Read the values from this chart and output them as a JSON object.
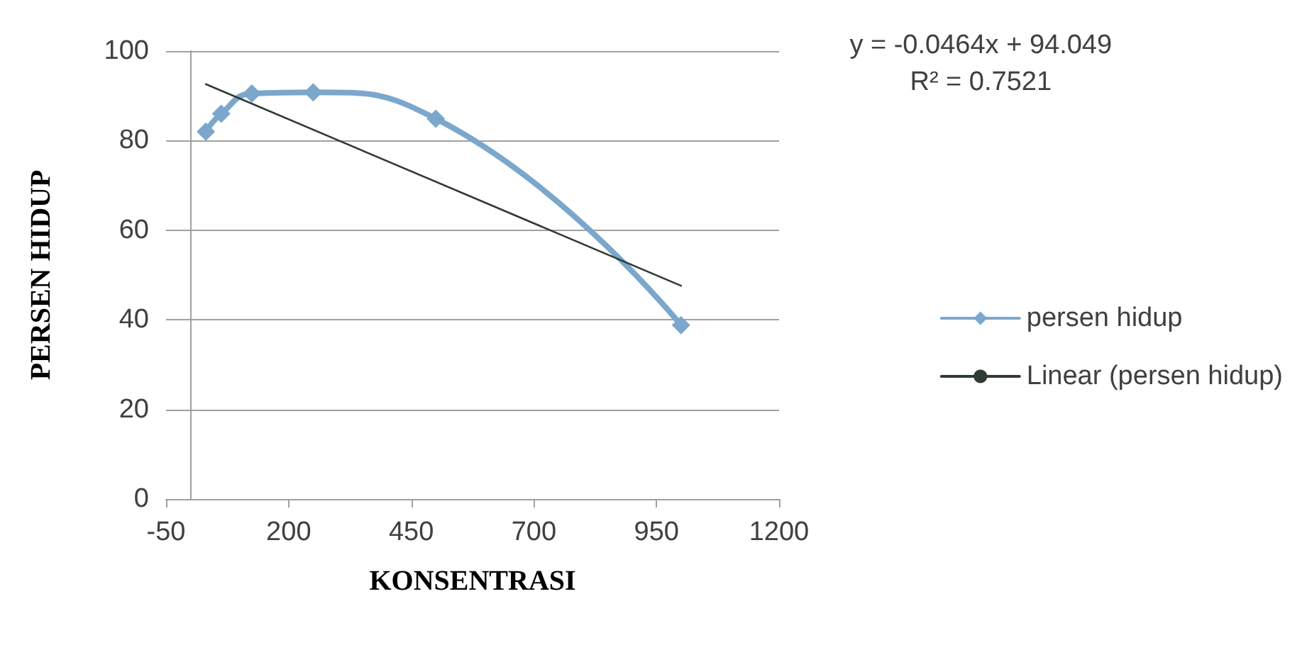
{
  "chart_data": {
    "type": "line",
    "xlabel": "KONSENTRASI",
    "ylabel": "PERSEN HIDUP",
    "annotations": [
      "y = -0.0464x + 94.049",
      "R² = 0.7521"
    ],
    "x": [
      31.25,
      62.5,
      125,
      250,
      500,
      1000
    ],
    "series": [
      {
        "name": "persen hidup",
        "color": "#7ba7cc",
        "values": [
          82,
          86,
          90.5,
          90.8,
          84.9,
          38.8
        ],
        "marker": "diamond"
      },
      {
        "name": "Linear (persen hidup)",
        "type": "line",
        "color": "#2f3b33",
        "x": [
          31.25,
          1000
        ],
        "values": [
          92.6,
          47.6
        ],
        "marker": "none"
      }
    ],
    "xlim": [
      -50,
      1200
    ],
    "xticks": [
      -50,
      200,
      450,
      700,
      950,
      1200
    ],
    "ylim": [
      0,
      100
    ],
    "yticks": [
      0,
      20,
      40,
      60,
      80,
      100
    ],
    "grid": "y",
    "legend": "right",
    "line_style": "solid"
  }
}
